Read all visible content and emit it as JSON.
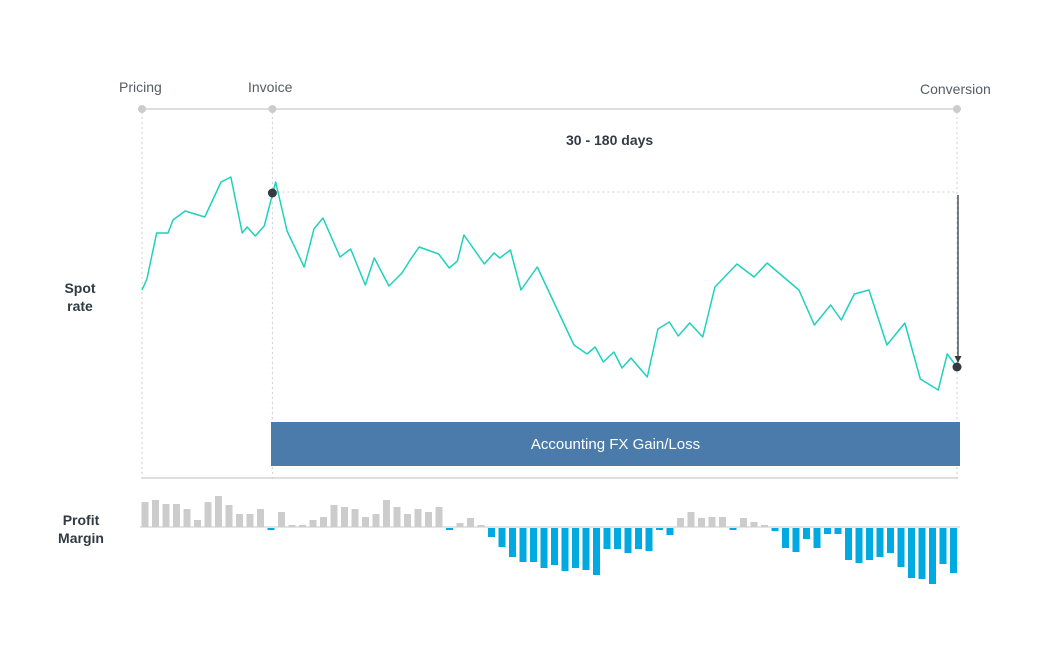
{
  "milestones": [
    {
      "label": "Pricing",
      "t": 0
    },
    {
      "label": "Invoice",
      "t": 16
    },
    {
      "label": "Conversion",
      "t": 100
    }
  ],
  "period_label": "30 - 180 days",
  "spot_rate_label_line1": "Spot",
  "spot_rate_label_line2": "rate",
  "profit_margin_label_line1": "Profit",
  "profit_margin_label_line2": "Margin",
  "fx_box_label": "Accounting FX Gain/Loss",
  "colors": {
    "line": "#1fd1bd",
    "fx_box": "#4a7bab",
    "positive_bar": "#cccccc",
    "negative_bar": "#00a9e0",
    "marker": "#333a40",
    "axis": "#d4d4d4"
  },
  "chart_data": [
    {
      "type": "line",
      "name": "Spot rate",
      "x": [
        0,
        0.6,
        1.8,
        3.2,
        3.8,
        5.3,
        7.7,
        9.7,
        10.9,
        12.3,
        12.9,
        13.9,
        15.0,
        16.4,
        17.8,
        19.9,
        21.1,
        22.2,
        24.3,
        25.6,
        27.4,
        28.5,
        30.3,
        31.9,
        32.9,
        34.0,
        36.4,
        37.7,
        38.7,
        39.5,
        42.0,
        43.2,
        43.9,
        45.2,
        46.5,
        48.5,
        53.0,
        54.6,
        55.6,
        56.6,
        57.9,
        58.9,
        60.0,
        62.0,
        63.3,
        64.7,
        65.8,
        67.2,
        68.8,
        70.3,
        73.0,
        75.1,
        76.7,
        80.6,
        82.5,
        84.5,
        85.8,
        87.4,
        89.2,
        91.4,
        93.6,
        95.5,
        97.7,
        98.8,
        100
      ],
      "y": [
        188,
        199,
        245,
        245,
        258,
        267,
        261,
        296,
        301,
        245,
        251,
        242,
        252,
        296,
        247,
        211,
        249,
        260,
        221,
        229,
        193,
        220,
        192,
        205,
        218,
        231,
        224,
        210,
        217,
        243,
        214,
        225,
        220,
        228,
        188,
        211,
        133,
        124,
        131,
        116,
        126,
        110,
        120,
        101,
        149,
        156,
        142,
        155,
        141,
        191,
        214,
        201,
        215,
        188,
        153,
        173,
        158,
        184,
        188,
        133,
        155,
        99,
        88,
        124,
        111
      ],
      "markers": [
        {
          "t": 16,
          "v": 285
        },
        {
          "t": 100,
          "v": 111
        }
      ],
      "reference_level": 286
    },
    {
      "type": "bar",
      "name": "Profit Margin",
      "values": [
        25,
        27,
        23,
        23,
        18,
        7,
        25,
        31,
        22,
        13,
        13,
        18,
        -2,
        15,
        2,
        2,
        7,
        10,
        22,
        20,
        18,
        10,
        13,
        27,
        20,
        13,
        18,
        15,
        20,
        -2,
        4,
        9,
        2,
        -9,
        -19,
        -29,
        -34,
        -34,
        -40,
        -37,
        -43,
        -40,
        -42,
        -47,
        -21,
        -21,
        -25,
        -21,
        -23,
        -2,
        -7,
        9,
        15,
        9,
        10,
        10,
        -2,
        9,
        5,
        2,
        -3,
        -20,
        -24,
        -11,
        -20,
        -6,
        -6,
        -32,
        -35,
        -32,
        -29,
        -25,
        -39,
        -50,
        -51,
        -56,
        -36,
        -45
      ]
    }
  ]
}
